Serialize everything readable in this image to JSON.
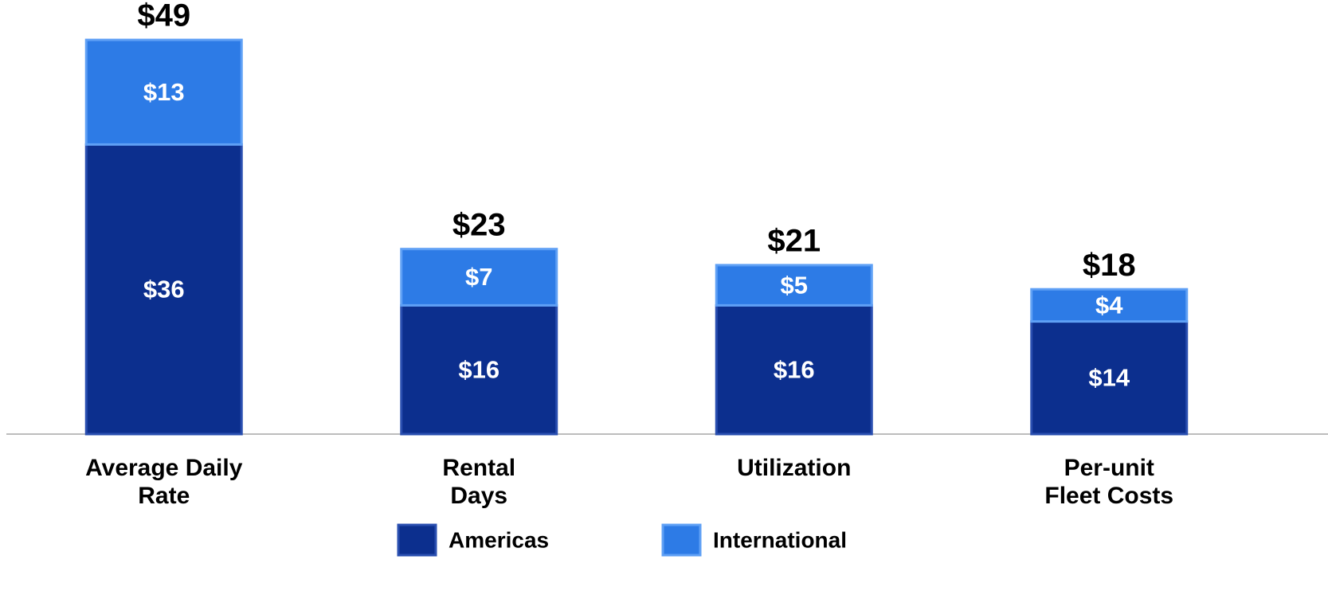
{
  "chart_data": {
    "type": "stacked_bar",
    "categories": [
      "Average Daily\nRate",
      "Rental\nDays",
      "Utilization",
      "Per-unit\nFleet Costs"
    ],
    "series": [
      {
        "name": "Americas",
        "color": "#0c2f8e",
        "values": [
          36,
          16,
          16,
          14
        ],
        "value_labels": [
          "$36",
          "$16",
          "$16",
          "$14"
        ]
      },
      {
        "name": "International",
        "color": "#2d7be6",
        "values": [
          13,
          7,
          5,
          4
        ],
        "value_labels": [
          "$13",
          "$7",
          "$5",
          "$4"
        ]
      }
    ],
    "totals": [
      49,
      23,
      21,
      18
    ],
    "total_labels": [
      "$49",
      "$23",
      "$21",
      "$18"
    ],
    "ylim": [
      0,
      50
    ],
    "legend": "bottom"
  }
}
